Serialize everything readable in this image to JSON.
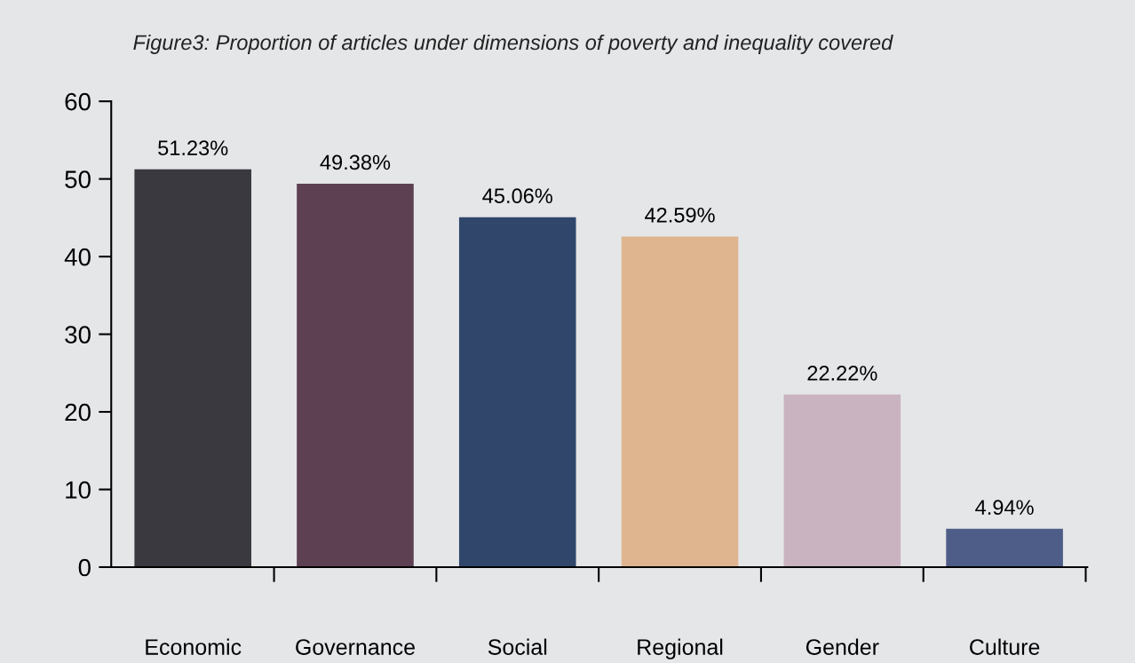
{
  "chart_data": {
    "type": "bar",
    "title": "Figure3: Proportion of articles under dimensions of poverty and inequality covered",
    "categories": [
      "Economic",
      "Governance",
      "Social",
      "Regional",
      "Gender",
      "Culture"
    ],
    "values": [
      51.23,
      49.38,
      45.06,
      42.59,
      22.22,
      4.94
    ],
    "value_labels": [
      "51.23%",
      "49.38%",
      "45.06%",
      "42.59%",
      "22.22%",
      "4.94%"
    ],
    "colors": [
      "#3a393f",
      "#5e4053",
      "#30476b",
      "#dfb590",
      "#c9b3c0",
      "#4e5d88"
    ],
    "ylim": [
      0,
      60
    ],
    "yticks": [
      0,
      10,
      20,
      30,
      40,
      50,
      60
    ],
    "grid": false,
    "legend": false
  }
}
